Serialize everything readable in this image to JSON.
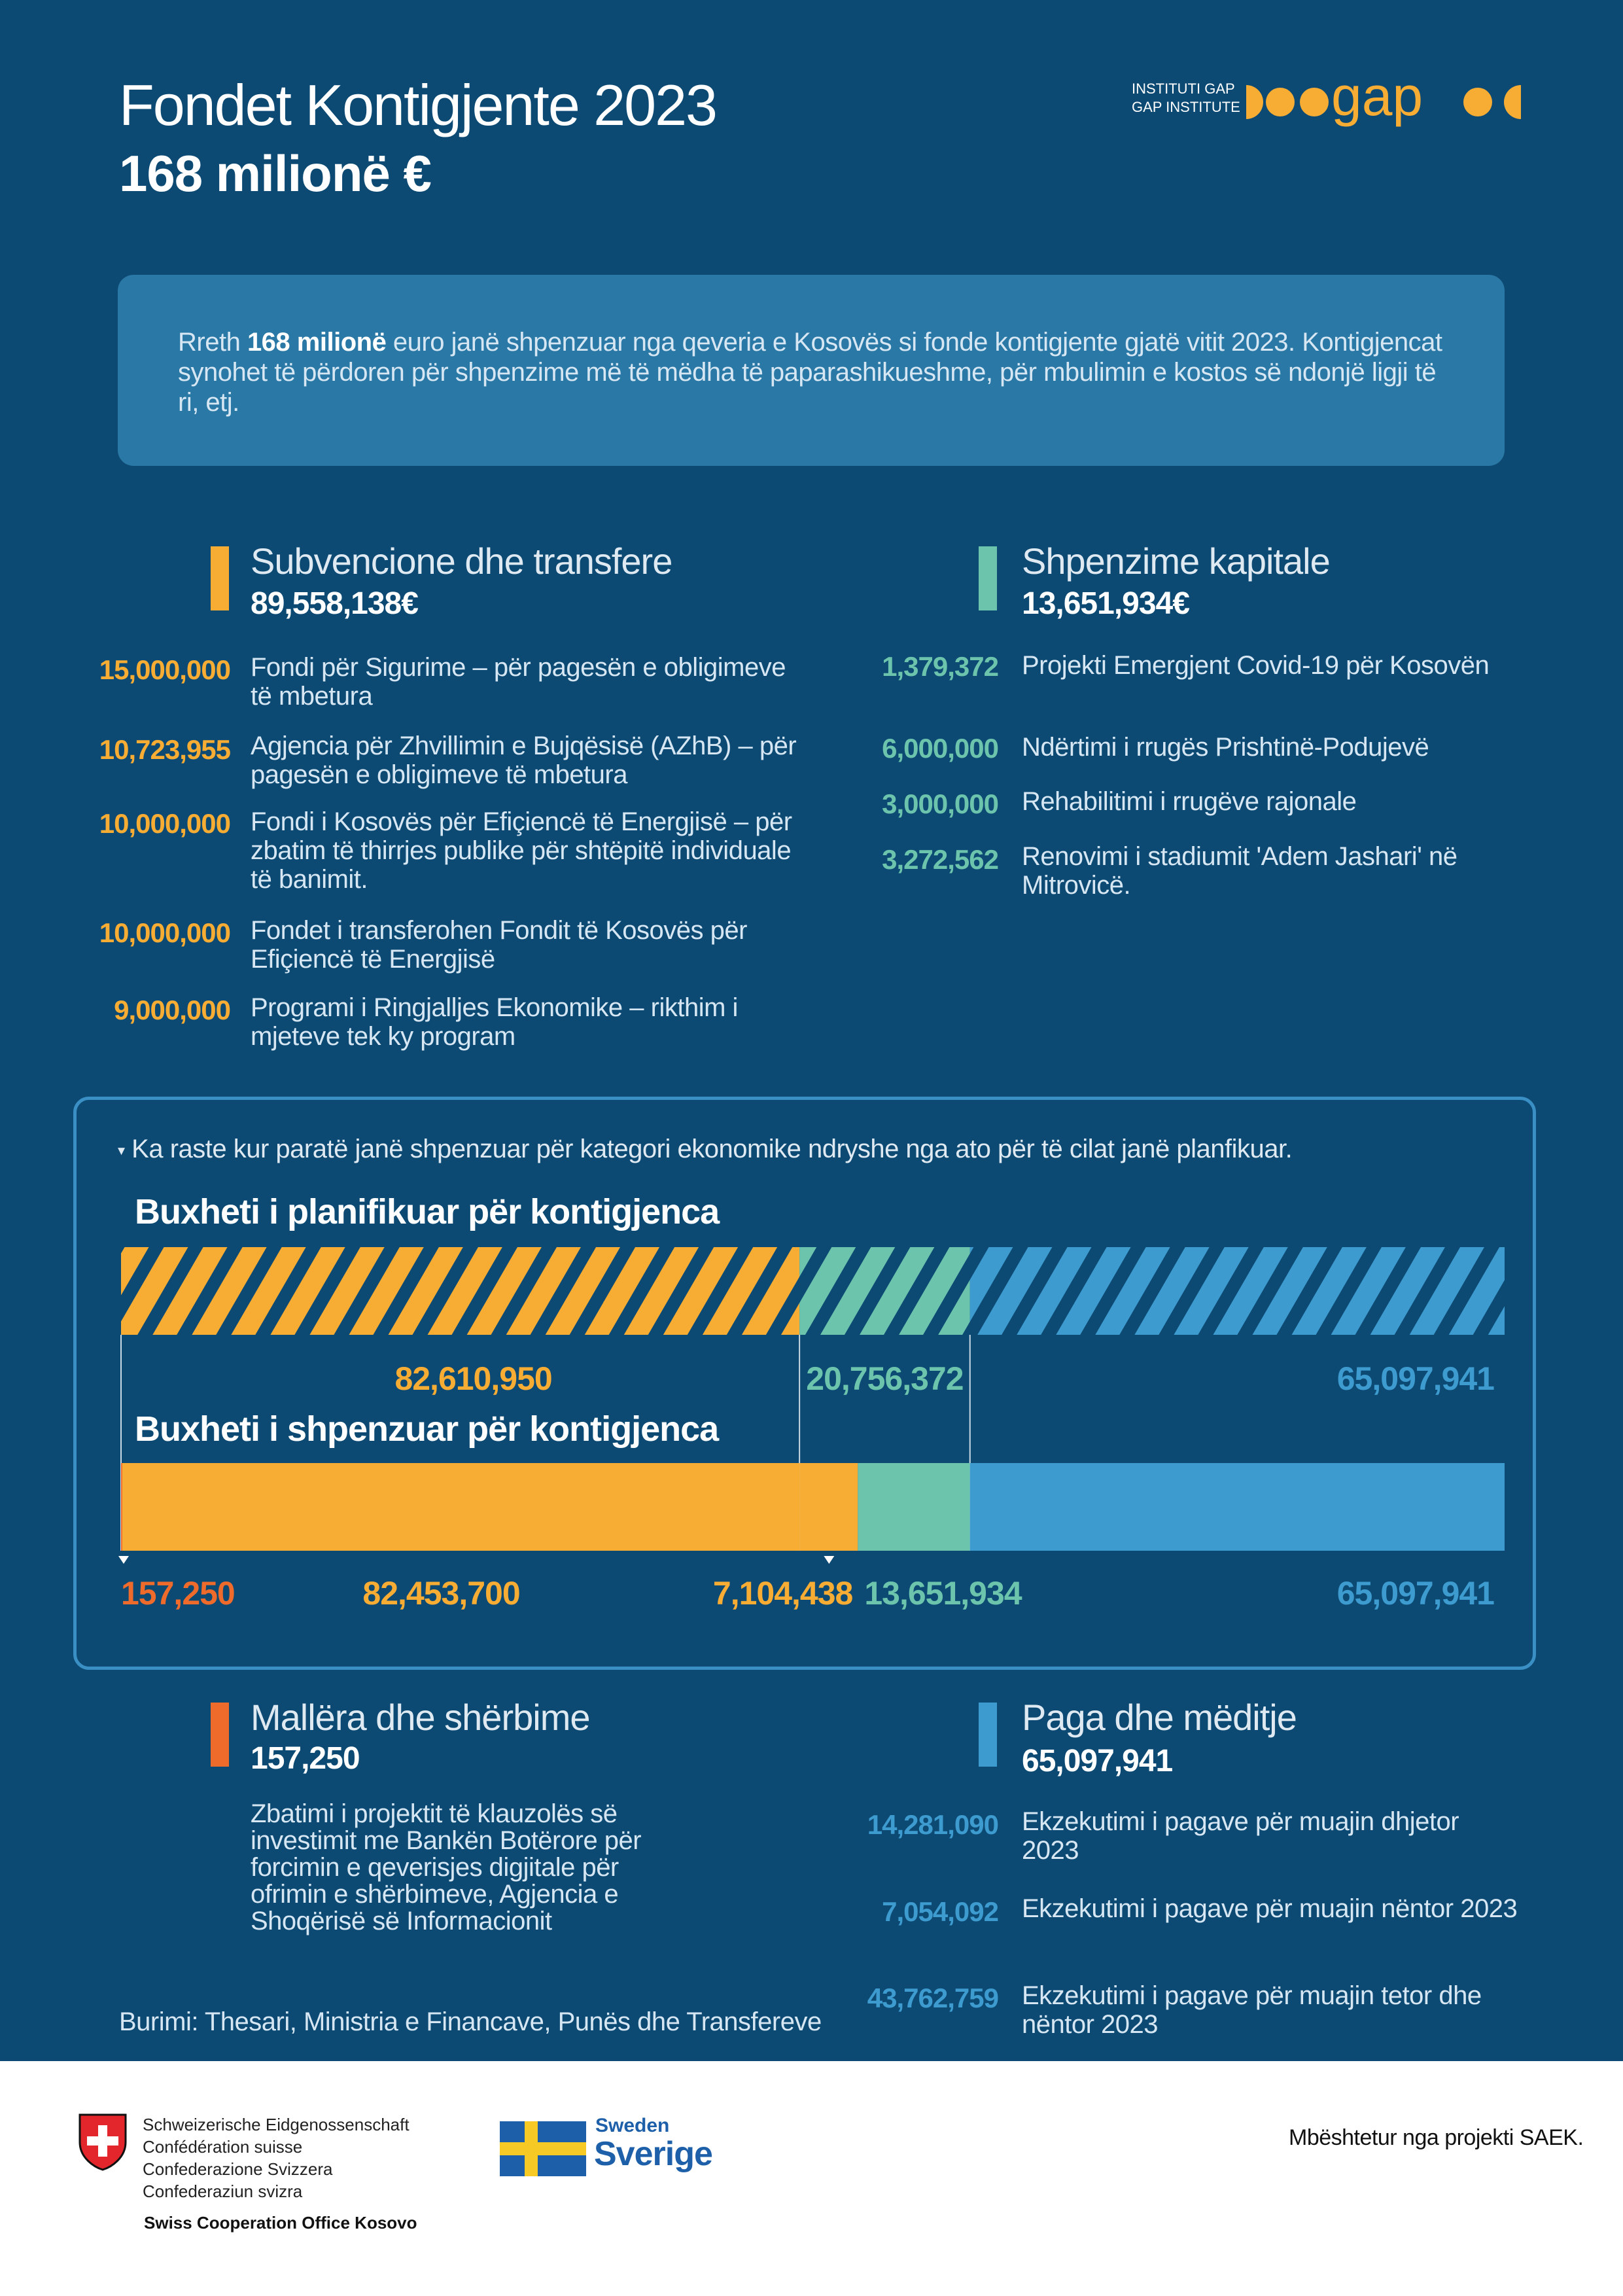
{
  "header": {
    "title": "Fondet Kontigjente 2023",
    "subtitle": "168 milionë €",
    "logo_line1": "INSTITUTI GAP",
    "logo_line2": "GAP INSTITUTE",
    "logo_word": "gap"
  },
  "intro": {
    "lead": "Rreth ",
    "bold": "168 milionë",
    "rest": " euro janë shpenzuar nga qeveria e Kosovës si fonde kontigjente gjatë vitit 2023. Kontigjencat synohet të përdoren për shpenzime më të mëdha të paparashikueshme, për mbulimin e kostos së ndonjë ligji të ri, etj."
  },
  "categories": {
    "subvencione": {
      "title": "Subvencione dhe transfere",
      "total": "89,558,138€",
      "color": "#f7ac34",
      "items": [
        {
          "amount": "15,000,000",
          "desc": "Fondi për Sigurime – për pagesën e obligimeve të mbetura"
        },
        {
          "amount": "10,723,955",
          "desc": "Agjencia për Zhvillimin e Bujqësisë (AZhB) – për pagesën e obligimeve të mbetura"
        },
        {
          "amount": "10,000,000",
          "desc": "Fondi i Kosovës për Efiçiencë të Energjisë – për zbatim të thirrjes publike për shtëpitë individuale të banimit."
        },
        {
          "amount": "10,000,000",
          "desc": "Fondet i transferohen Fondit të Kosovës për Efiçiencë të Energjisë"
        },
        {
          "amount": "9,000,000",
          "desc": "Programi i Ringjalljes Ekonomike – rikthim i mjeteve tek ky program"
        }
      ]
    },
    "kapitale": {
      "title": "Shpenzime kapitale",
      "total": "13,651,934€",
      "color": "#6cc4ad",
      "items": [
        {
          "amount": "1,379,372",
          "desc": "Projekti Emergjent Covid-19 për Kosovën"
        },
        {
          "amount": "6,000,000",
          "desc": "Ndërtimi i rrugës Prishtinë-Podujevë"
        },
        {
          "amount": "3,000,000",
          "desc": "Rehabilitimi i rrugëve rajonale"
        },
        {
          "amount": "3,272,562",
          "desc": "Renovimi i stadiumit 'Adem Jashari' në Mitrovicë."
        }
      ]
    },
    "mallra": {
      "title": "Mallëra dhe shërbime",
      "total": "157,250",
      "color": "#ef6b2b",
      "desc": "Zbatimi i projektit të klauzolës së investimit me Bankën Botërore për forcimin e qeverisjes digjitale për ofrimin e shërbimeve, Agjencia e Shoqërisë së Informacionit"
    },
    "paga": {
      "title": "Paga dhe mëditje",
      "total": "65,097,941",
      "color": "#3d9bcf",
      "items": [
        {
          "amount": "14,281,090",
          "desc": "Ekzekutimi i pagave për muajin dhjetor 2023"
        },
        {
          "amount": "7,054,092",
          "desc": "Ekzekutimi i pagave për muajin nëntor 2023"
        },
        {
          "amount": "43,762,759",
          "desc": "Ekzekutimi i pagave për muajin tetor dhe nëntor 2023"
        }
      ]
    }
  },
  "chart_note": "Ka raste kur paratë janë shpenzuar për kategori ekonomike ndryshe nga ato për të cilat janë planfikuar.",
  "chart_data": {
    "type": "bar",
    "orientation": "horizontal-stacked",
    "categories": [
      "Buxheti i planifikuar për kontigjenca",
      "Buxheti i shpenzuar për kontigjenca"
    ],
    "series": [
      {
        "bar": "Buxheti i planifikuar për kontigjenca",
        "segments": [
          {
            "value": 82610950,
            "label": "82,610,950",
            "color": "#f7ac34",
            "hatched": true
          },
          {
            "value": 20756372,
            "label": "20,756,372",
            "color": "#6cc4ad",
            "hatched": true
          },
          {
            "value": 65097941,
            "label": "65,097,941",
            "color": "#3d9bcf",
            "hatched": true
          }
        ]
      },
      {
        "bar": "Buxheti i shpenzuar për kontigjenca",
        "segments": [
          {
            "value": 157250,
            "label": "157,250",
            "color": "#ef6b2b",
            "hatched": false
          },
          {
            "value": 82453700,
            "label": "82,453,700",
            "color": "#f7ac34",
            "hatched": false
          },
          {
            "value": 7104438,
            "label": "7,104,438",
            "color": "#f7ac34",
            "hatched": false
          },
          {
            "value": 13651934,
            "label": "13,651,934",
            "color": "#6cc4ad",
            "hatched": false
          },
          {
            "value": 65097941,
            "label": "65,097,941",
            "color": "#3d9bcf",
            "hatched": false
          }
        ]
      }
    ]
  },
  "source": "Burimi: Thesari, Ministria e Financave, Punës dhe Transfereve",
  "footer": {
    "swiss_lines": [
      "Schweizerische Eidgenossenschaft",
      "Confédération suisse",
      "Confederazione Svizzera",
      "Confederaziun svizra"
    ],
    "swiss_office": "Swiss Cooperation Office Kosovo",
    "sweden_small": "Sweden",
    "sweden_big": "Sverige",
    "support": "Mbështetur nga projekti SAEK."
  }
}
